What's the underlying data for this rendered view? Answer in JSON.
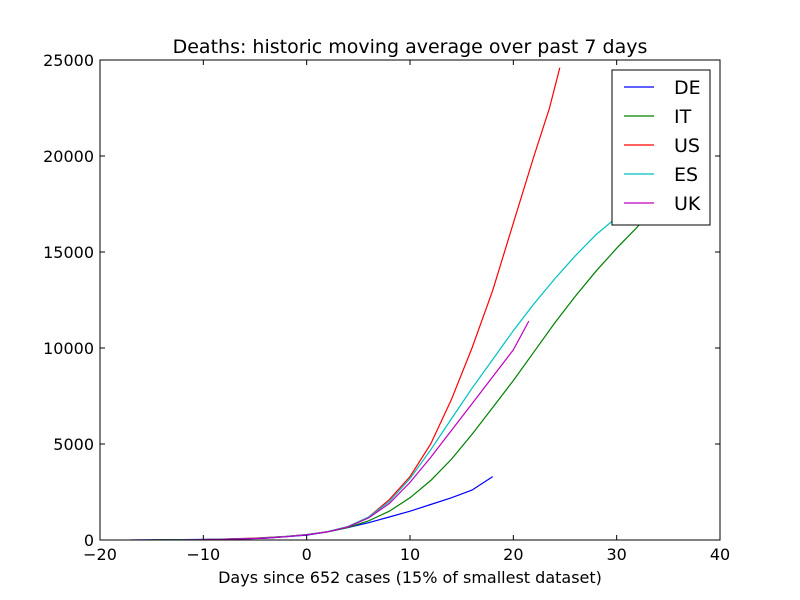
{
  "chart_data": {
    "type": "line",
    "title": "Deaths: historic moving average over past 7 days",
    "xlabel": "Days since 652 cases (15% of smallest dataset)",
    "ylabel": "",
    "xlim": [
      -20,
      40
    ],
    "ylim": [
      0,
      25000
    ],
    "xticks": [
      -20,
      -10,
      0,
      10,
      20,
      30,
      40
    ],
    "xtick_labels": [
      "−20",
      "−10",
      "0",
      "10",
      "20",
      "30",
      "40"
    ],
    "yticks": [
      0,
      5000,
      10000,
      15000,
      20000,
      25000
    ],
    "ytick_labels": [
      "0",
      "5000",
      "10000",
      "15000",
      "20000",
      "25000"
    ],
    "grid": false,
    "legend_position": "top-right",
    "series": [
      {
        "name": "DE",
        "color": "#0000ff",
        "points": [
          [
            -17,
            0
          ],
          [
            -12,
            20
          ],
          [
            -8,
            40
          ],
          [
            -4,
            90
          ],
          [
            0,
            250
          ],
          [
            2,
            420
          ],
          [
            4,
            650
          ],
          [
            6,
            900
          ],
          [
            8,
            1200
          ],
          [
            10,
            1500
          ],
          [
            12,
            1850
          ],
          [
            14,
            2200
          ],
          [
            16,
            2600
          ],
          [
            18,
            3300
          ]
        ]
      },
      {
        "name": "IT",
        "color": "#008000",
        "points": [
          [
            -15,
            0
          ],
          [
            -10,
            20
          ],
          [
            -5,
            90
          ],
          [
            -2,
            180
          ],
          [
            0,
            280
          ],
          [
            2,
            420
          ],
          [
            4,
            650
          ],
          [
            6,
            1000
          ],
          [
            8,
            1500
          ],
          [
            10,
            2200
          ],
          [
            12,
            3100
          ],
          [
            14,
            4200
          ],
          [
            16,
            5500
          ],
          [
            18,
            6900
          ],
          [
            20,
            8300
          ],
          [
            22,
            9800
          ],
          [
            24,
            11300
          ],
          [
            26,
            12700
          ],
          [
            28,
            14000
          ],
          [
            30,
            15200
          ],
          [
            32,
            16300
          ],
          [
            33,
            16900
          ]
        ]
      },
      {
        "name": "US",
        "color": "#ff0000",
        "points": [
          [
            -15,
            0
          ],
          [
            -10,
            20
          ],
          [
            -5,
            100
          ],
          [
            -2,
            190
          ],
          [
            0,
            280
          ],
          [
            2,
            430
          ],
          [
            4,
            700
          ],
          [
            6,
            1200
          ],
          [
            8,
            2100
          ],
          [
            10,
            3300
          ],
          [
            12,
            5000
          ],
          [
            14,
            7300
          ],
          [
            16,
            10000
          ],
          [
            18,
            13000
          ],
          [
            20,
            16500
          ],
          [
            22,
            20000
          ],
          [
            23.5,
            22500
          ],
          [
            24.5,
            24600
          ]
        ]
      },
      {
        "name": "ES",
        "color": "#00bfbf",
        "points": [
          [
            -15,
            0
          ],
          [
            -10,
            20
          ],
          [
            -5,
            90
          ],
          [
            -2,
            180
          ],
          [
            0,
            280
          ],
          [
            2,
            430
          ],
          [
            4,
            700
          ],
          [
            6,
            1200
          ],
          [
            8,
            2000
          ],
          [
            10,
            3200
          ],
          [
            12,
            4700
          ],
          [
            14,
            6300
          ],
          [
            16,
            7900
          ],
          [
            18,
            9400
          ],
          [
            20,
            10900
          ],
          [
            22,
            12300
          ],
          [
            24,
            13600
          ],
          [
            26,
            14800
          ],
          [
            28,
            15900
          ],
          [
            30,
            16800
          ],
          [
            32,
            17600
          ]
        ]
      },
      {
        "name": "UK",
        "color": "#bf00bf",
        "points": [
          [
            -12,
            0
          ],
          [
            -8,
            30
          ],
          [
            -4,
            100
          ],
          [
            -2,
            170
          ],
          [
            0,
            270
          ],
          [
            2,
            420
          ],
          [
            4,
            680
          ],
          [
            6,
            1150
          ],
          [
            8,
            1900
          ],
          [
            10,
            3000
          ],
          [
            12,
            4300
          ],
          [
            14,
            5700
          ],
          [
            16,
            7100
          ],
          [
            18,
            8500
          ],
          [
            20,
            9900
          ],
          [
            21.5,
            11400
          ]
        ]
      }
    ]
  }
}
